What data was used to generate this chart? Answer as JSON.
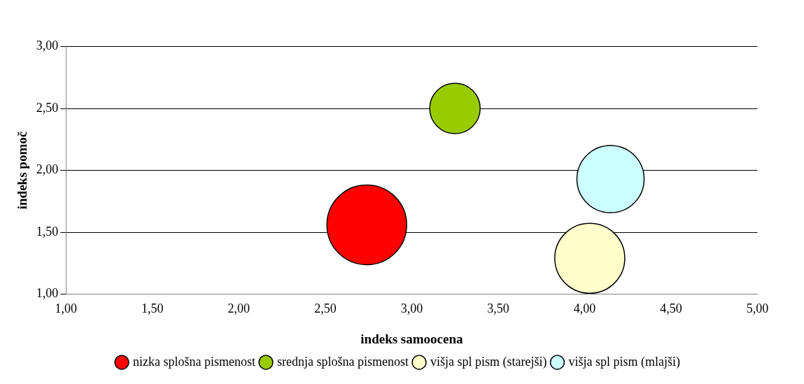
{
  "chart_data": {
    "type": "bubble",
    "xlabel": "indeks samoocena",
    "ylabel": "indeks pomoč",
    "xlim": [
      1,
      5
    ],
    "ylim": [
      1,
      3
    ],
    "xticks": [
      {
        "value": 1,
        "label": "1,00"
      },
      {
        "value": 1.5,
        "label": "1,50"
      },
      {
        "value": 2,
        "label": "2,00"
      },
      {
        "value": 2.5,
        "label": "2,50"
      },
      {
        "value": 3,
        "label": "3,00"
      },
      {
        "value": 3.5,
        "label": "3,50"
      },
      {
        "value": 4,
        "label": "4,00"
      },
      {
        "value": 4.5,
        "label": "4,50"
      },
      {
        "value": 5,
        "label": "5,00"
      }
    ],
    "yticks": [
      {
        "value": 1,
        "label": "1,00"
      },
      {
        "value": 1.5,
        "label": "1,50"
      },
      {
        "value": 2,
        "label": "2,00"
      },
      {
        "value": 2.5,
        "label": "2,50"
      },
      {
        "value": 3,
        "label": "3,00"
      }
    ],
    "grid": "y",
    "legend": "bottom",
    "marker": "circle",
    "series": [
      {
        "name": "nizka splošna pismenost",
        "color": "#ff0000",
        "x": [
          2.74
        ],
        "values": [
          1.56
        ],
        "sizes": [
          1
        ]
      },
      {
        "name": "srednja splošna pismenost",
        "color": "#99cc00",
        "x": [
          3.25
        ],
        "values": [
          2.5
        ],
        "sizes": [
          0.4
        ]
      },
      {
        "name": "višja spl pism (starejši)",
        "color": "#ffffcc",
        "x": [
          4.03
        ],
        "values": [
          1.29
        ],
        "sizes": [
          0.77
        ]
      },
      {
        "name": "višja spl pism (mlajši)",
        "color": "#ccffff",
        "x": [
          4.15
        ],
        "values": [
          1.93
        ],
        "sizes": [
          0.71
        ]
      }
    ]
  }
}
